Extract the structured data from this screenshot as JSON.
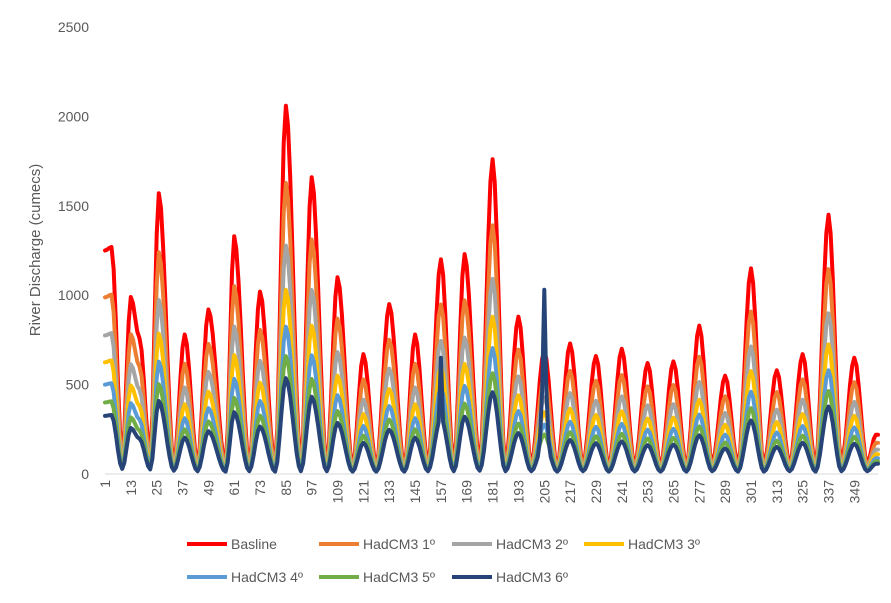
{
  "chart_data": {
    "type": "line",
    "title": "",
    "xlabel": "",
    "ylabel": "River Discharge (cumecs)",
    "ylim": [
      0,
      2500
    ],
    "yticks": [
      0,
      500,
      1000,
      1500,
      2000,
      2500
    ],
    "xlim": [
      1,
      360
    ],
    "xticks": [
      1,
      13,
      25,
      37,
      49,
      61,
      73,
      85,
      97,
      109,
      121,
      133,
      145,
      157,
      169,
      181,
      193,
      205,
      217,
      229,
      241,
      253,
      265,
      277,
      289,
      301,
      313,
      325,
      337,
      349
    ],
    "grid": false,
    "legend_position": "bottom",
    "baseline": {
      "name": "Basline",
      "color": "#ff0000",
      "peaks": [
        [
          1,
          1250
        ],
        [
          4,
          1270
        ],
        [
          13,
          990
        ],
        [
          17,
          760
        ],
        [
          26,
          1570
        ],
        [
          38,
          780
        ],
        [
          49,
          920
        ],
        [
          61,
          1330
        ],
        [
          73,
          1020
        ],
        [
          85,
          2060
        ],
        [
          97,
          1660
        ],
        [
          109,
          1100
        ],
        [
          121,
          670
        ],
        [
          133,
          950
        ],
        [
          145,
          780
        ],
        [
          157,
          1200
        ],
        [
          168,
          1230
        ],
        [
          181,
          1760
        ],
        [
          193,
          880
        ],
        [
          205,
          690
        ],
        [
          217,
          730
        ],
        [
          229,
          660
        ],
        [
          241,
          700
        ],
        [
          253,
          620
        ],
        [
          265,
          630
        ],
        [
          277,
          830
        ],
        [
          289,
          550
        ],
        [
          301,
          1150
        ],
        [
          313,
          580
        ],
        [
          325,
          670
        ],
        [
          337,
          1450
        ],
        [
          349,
          650
        ],
        [
          359,
          220
        ]
      ],
      "troughs": [
        [
          9,
          110
        ],
        [
          22,
          100
        ],
        [
          33,
          70
        ],
        [
          44,
          60
        ],
        [
          57,
          50
        ],
        [
          68,
          60
        ],
        [
          80,
          50
        ],
        [
          92,
          60
        ],
        [
          104,
          60
        ],
        [
          116,
          50
        ],
        [
          127,
          50
        ],
        [
          140,
          50
        ],
        [
          151,
          60
        ],
        [
          163,
          60
        ],
        [
          175,
          70
        ],
        [
          187,
          60
        ],
        [
          199,
          60
        ],
        [
          211,
          50
        ],
        [
          223,
          60
        ],
        [
          235,
          50
        ],
        [
          247,
          55
        ],
        [
          259,
          50
        ],
        [
          271,
          50
        ],
        [
          283,
          60
        ],
        [
          295,
          50
        ],
        [
          307,
          50
        ],
        [
          319,
          60
        ],
        [
          331,
          50
        ],
        [
          343,
          60
        ],
        [
          355,
          60
        ]
      ]
    },
    "series": [
      {
        "name": "Basline",
        "color": "#ff0000",
        "scale": 1.0
      },
      {
        "name": "HadCM3 1º",
        "color": "#ed7d31",
        "scale": 0.79
      },
      {
        "name": "HadCM3 2º",
        "color": "#a5a5a5",
        "scale": 0.62
      },
      {
        "name": "HadCM3 3º",
        "color": "#ffc000",
        "scale": 0.5
      },
      {
        "name": "HadCM3 4º",
        "color": "#5b9bd5",
        "scale": 0.4
      },
      {
        "name": "HadCM3 5º",
        "color": "#70ad47",
        "scale": 0.32
      },
      {
        "name": "HadCM3 6º",
        "color": "#264478",
        "scale": 0.26
      }
    ],
    "series_6_spikes": [
      [
        157,
        650
      ],
      [
        205,
        1030
      ]
    ]
  }
}
